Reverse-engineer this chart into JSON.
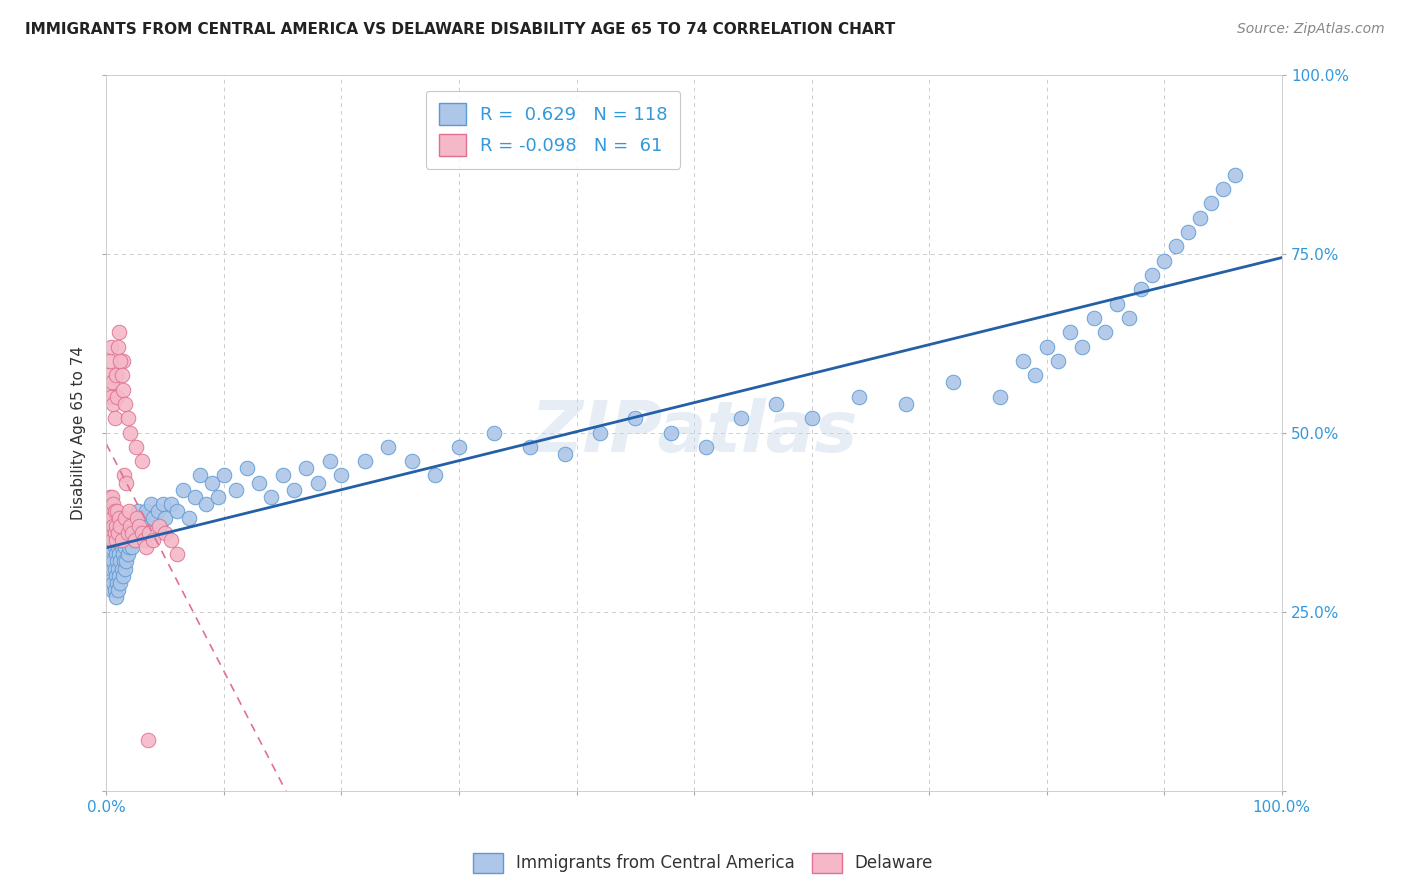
{
  "title": "IMMIGRANTS FROM CENTRAL AMERICA VS DELAWARE DISABILITY AGE 65 TO 74 CORRELATION CHART",
  "source_text": "Source: ZipAtlas.com",
  "ylabel": "Disability Age 65 to 74",
  "xlim": [
    0.0,
    1.0
  ],
  "ylim": [
    0.0,
    1.0
  ],
  "xtick_positions": [
    0.0,
    0.1,
    0.2,
    0.3,
    0.4,
    0.5,
    0.6,
    0.7,
    0.8,
    0.9,
    1.0
  ],
  "xticklabels_show": {
    "0.0": "0.0%",
    "1.0": "100.0%"
  },
  "ytick_positions": [
    0.0,
    0.25,
    0.5,
    0.75,
    1.0
  ],
  "yticklabels_right": [
    "",
    "25.0%",
    "50.0%",
    "75.0%",
    "100.0%"
  ],
  "blue_R": 0.629,
  "blue_N": 118,
  "pink_R": -0.098,
  "pink_N": 61,
  "blue_scatter_color": "#aec6e8",
  "blue_edge_color": "#5b9bd5",
  "pink_scatter_color": "#f4b8c8",
  "pink_edge_color": "#e07090",
  "blue_line_color": "#2460a7",
  "pink_line_color": "#e07090",
  "grid_color": "#cccccc",
  "bg_color": "#ffffff",
  "watermark": "ZIPatlas",
  "legend_label_blue": "Immigrants from Central America",
  "legend_label_pink": "Delaware",
  "title_fontsize": 11,
  "source_fontsize": 10,
  "legend_fontsize": 12,
  "blue_x": [
    0.003,
    0.004,
    0.004,
    0.005,
    0.005,
    0.005,
    0.006,
    0.006,
    0.006,
    0.007,
    0.007,
    0.007,
    0.008,
    0.008,
    0.008,
    0.008,
    0.009,
    0.009,
    0.009,
    0.01,
    0.01,
    0.01,
    0.011,
    0.011,
    0.012,
    0.012,
    0.012,
    0.013,
    0.013,
    0.014,
    0.014,
    0.015,
    0.015,
    0.016,
    0.016,
    0.017,
    0.017,
    0.018,
    0.018,
    0.019,
    0.02,
    0.021,
    0.022,
    0.023,
    0.024,
    0.025,
    0.026,
    0.027,
    0.028,
    0.03,
    0.032,
    0.034,
    0.036,
    0.038,
    0.04,
    0.042,
    0.044,
    0.046,
    0.048,
    0.05,
    0.055,
    0.06,
    0.065,
    0.07,
    0.075,
    0.08,
    0.085,
    0.09,
    0.095,
    0.1,
    0.11,
    0.12,
    0.13,
    0.14,
    0.15,
    0.16,
    0.17,
    0.18,
    0.19,
    0.2,
    0.22,
    0.24,
    0.26,
    0.28,
    0.3,
    0.33,
    0.36,
    0.39,
    0.42,
    0.45,
    0.48,
    0.51,
    0.54,
    0.57,
    0.6,
    0.64,
    0.68,
    0.72,
    0.76,
    0.78,
    0.79,
    0.8,
    0.81,
    0.82,
    0.83,
    0.84,
    0.85,
    0.86,
    0.87,
    0.88,
    0.89,
    0.9,
    0.91,
    0.92,
    0.93,
    0.94,
    0.95,
    0.96
  ],
  "blue_y": [
    0.32,
    0.3,
    0.34,
    0.28,
    0.31,
    0.35,
    0.29,
    0.32,
    0.36,
    0.28,
    0.31,
    0.34,
    0.27,
    0.3,
    0.33,
    0.36,
    0.29,
    0.32,
    0.35,
    0.28,
    0.31,
    0.34,
    0.3,
    0.33,
    0.29,
    0.32,
    0.35,
    0.31,
    0.34,
    0.3,
    0.33,
    0.32,
    0.35,
    0.31,
    0.34,
    0.32,
    0.35,
    0.33,
    0.36,
    0.34,
    0.35,
    0.36,
    0.34,
    0.37,
    0.35,
    0.38,
    0.36,
    0.39,
    0.37,
    0.38,
    0.36,
    0.39,
    0.37,
    0.4,
    0.38,
    0.36,
    0.39,
    0.37,
    0.4,
    0.38,
    0.4,
    0.39,
    0.42,
    0.38,
    0.41,
    0.44,
    0.4,
    0.43,
    0.41,
    0.44,
    0.42,
    0.45,
    0.43,
    0.41,
    0.44,
    0.42,
    0.45,
    0.43,
    0.46,
    0.44,
    0.46,
    0.48,
    0.46,
    0.44,
    0.48,
    0.5,
    0.48,
    0.47,
    0.5,
    0.52,
    0.5,
    0.48,
    0.52,
    0.54,
    0.52,
    0.55,
    0.54,
    0.57,
    0.55,
    0.6,
    0.58,
    0.62,
    0.6,
    0.64,
    0.62,
    0.66,
    0.64,
    0.68,
    0.66,
    0.7,
    0.72,
    0.74,
    0.76,
    0.78,
    0.8,
    0.82,
    0.84,
    0.86
  ],
  "pink_x": [
    0.002,
    0.002,
    0.003,
    0.003,
    0.004,
    0.004,
    0.005,
    0.005,
    0.005,
    0.006,
    0.006,
    0.007,
    0.007,
    0.008,
    0.008,
    0.009,
    0.01,
    0.011,
    0.012,
    0.013,
    0.014,
    0.015,
    0.016,
    0.017,
    0.018,
    0.019,
    0.02,
    0.022,
    0.024,
    0.026,
    0.028,
    0.03,
    0.032,
    0.034,
    0.036,
    0.04,
    0.045,
    0.05,
    0.055,
    0.06,
    0.002,
    0.003,
    0.003,
    0.004,
    0.004,
    0.005,
    0.006,
    0.007,
    0.008,
    0.009,
    0.01,
    0.011,
    0.012,
    0.013,
    0.014,
    0.016,
    0.018,
    0.02,
    0.025,
    0.03,
    0.035
  ],
  "pink_y": [
    0.37,
    0.4,
    0.38,
    0.41,
    0.36,
    0.39,
    0.35,
    0.38,
    0.41,
    0.37,
    0.4,
    0.36,
    0.39,
    0.35,
    0.37,
    0.39,
    0.36,
    0.38,
    0.37,
    0.35,
    0.6,
    0.44,
    0.38,
    0.43,
    0.36,
    0.39,
    0.37,
    0.36,
    0.35,
    0.38,
    0.37,
    0.36,
    0.35,
    0.34,
    0.36,
    0.35,
    0.37,
    0.36,
    0.35,
    0.33,
    0.58,
    0.56,
    0.6,
    0.55,
    0.62,
    0.57,
    0.54,
    0.52,
    0.58,
    0.55,
    0.62,
    0.64,
    0.6,
    0.58,
    0.56,
    0.54,
    0.52,
    0.5,
    0.48,
    0.46,
    0.07
  ]
}
